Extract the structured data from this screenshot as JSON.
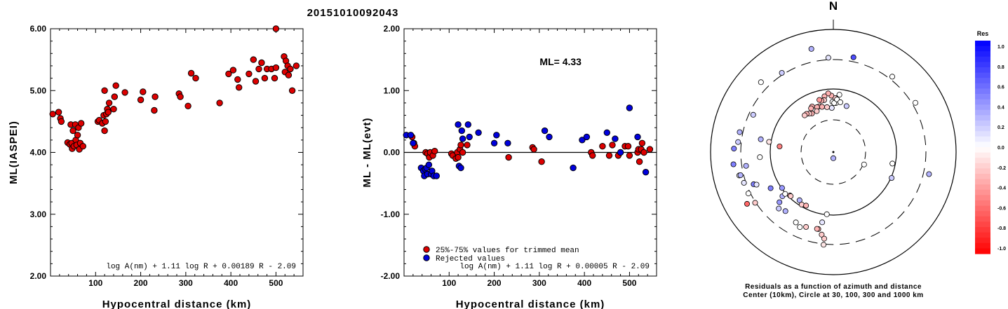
{
  "event_id": "20151010092043",
  "chart_data": [
    {
      "type": "scatter",
      "title": "20151010092043",
      "xlabel": "Hypocentral distance (km)",
      "ylabel": "ML(IASPEI)",
      "xlim": [
        0,
        560
      ],
      "ylim": [
        2.0,
        6.0
      ],
      "x_ticks": [
        "100",
        "200",
        "300",
        "400",
        "500"
      ],
      "y_ticks": [
        "2.00",
        "3.00",
        "4.00",
        "5.00",
        "6.00"
      ],
      "formula": "log A(nm) + 1.11 log R + 0.00189 R - 2.09",
      "series": [
        {
          "color": "#dd0000",
          "points": [
            [
              5,
              4.62
            ],
            [
              18,
              4.65
            ],
            [
              22,
              4.55
            ],
            [
              24,
              4.5
            ],
            [
              38,
              4.16
            ],
            [
              43,
              4.13
            ],
            [
              45,
              4.45
            ],
            [
              47,
              4.15
            ],
            [
              48,
              4.06
            ],
            [
              50,
              4.35
            ],
            [
              52,
              4.1
            ],
            [
              55,
              4.45
            ],
            [
              56,
              4.2
            ],
            [
              58,
              4.12
            ],
            [
              60,
              4.28
            ],
            [
              62,
              4.4
            ],
            [
              64,
              4.05
            ],
            [
              66,
              4.15
            ],
            [
              68,
              4.47
            ],
            [
              72,
              4.1
            ],
            [
              105,
              4.5
            ],
            [
              108,
              4.52
            ],
            [
              115,
              4.47
            ],
            [
              118,
              4.6
            ],
            [
              120,
              4.35
            ],
            [
              122,
              4.5
            ],
            [
              124,
              4.62
            ],
            [
              126,
              4.7
            ],
            [
              128,
              4.65
            ],
            [
              130,
              4.8
            ],
            [
              120,
              5.0
            ],
            [
              140,
              4.7
            ],
            [
              142,
              4.9
            ],
            [
              145,
              5.08
            ],
            [
              165,
              4.97
            ],
            [
              200,
              4.85
            ],
            [
              205,
              4.98
            ],
            [
              230,
              4.68
            ],
            [
              232,
              4.9
            ],
            [
              285,
              4.95
            ],
            [
              288,
              4.9
            ],
            [
              305,
              4.75
            ],
            [
              312,
              5.28
            ],
            [
              322,
              5.2
            ],
            [
              375,
              4.8
            ],
            [
              395,
              5.27
            ],
            [
              405,
              5.33
            ],
            [
              415,
              5.18
            ],
            [
              418,
              5.05
            ],
            [
              440,
              5.27
            ],
            [
              450,
              5.5
            ],
            [
              455,
              5.15
            ],
            [
              462,
              5.35
            ],
            [
              468,
              5.45
            ],
            [
              475,
              5.2
            ],
            [
              480,
              5.35
            ],
            [
              490,
              5.35
            ],
            [
              497,
              5.2
            ],
            [
              500,
              5.37
            ],
            [
              500,
              6.0
            ],
            [
              518,
              5.55
            ],
            [
              520,
              5.3
            ],
            [
              522,
              5.48
            ],
            [
              526,
              5.4
            ],
            [
              528,
              5.25
            ],
            [
              532,
              5.35
            ],
            [
              536,
              5.0
            ],
            [
              545,
              5.4
            ]
          ]
        }
      ]
    },
    {
      "type": "scatter",
      "xlabel": "Hypocentral distance (km)",
      "ylabel": "ML - ML(evt)",
      "xlim": [
        0,
        560
      ],
      "ylim": [
        -2.0,
        2.0
      ],
      "x_ticks": [
        "100",
        "200",
        "300",
        "400",
        "500"
      ],
      "y_ticks": [
        "-2.00",
        "-1.00",
        "0.00",
        "1.00",
        "2.00"
      ],
      "annotation": "ML= 4.33",
      "formula": "log A(nm) + 1.11 log R + 0.00005 R - 2.09",
      "legend_position": "bottom-left",
      "series": [
        {
          "name": "25%-75% values for trimmed mean",
          "color": "#dd0000",
          "points": [
            [
              18,
              0.25
            ],
            [
              22,
              0.15
            ],
            [
              24,
              0.1
            ],
            [
              48,
              0.0
            ],
            [
              52,
              -0.02
            ],
            [
              56,
              -0.08
            ],
            [
              58,
              0.0
            ],
            [
              64,
              -0.05
            ],
            [
              68,
              0.02
            ],
            [
              105,
              -0.02
            ],
            [
              108,
              -0.05
            ],
            [
              115,
              -0.1
            ],
            [
              118,
              0.0
            ],
            [
              120,
              -0.08
            ],
            [
              124,
              0.05
            ],
            [
              126,
              0.12
            ],
            [
              130,
              0.0
            ],
            [
              140,
              0.12
            ],
            [
              232,
              -0.08
            ],
            [
              285,
              0.08
            ],
            [
              288,
              0.05
            ],
            [
              305,
              -0.15
            ],
            [
              415,
              0.0
            ],
            [
              418,
              -0.05
            ],
            [
              440,
              0.1
            ],
            [
              455,
              -0.05
            ],
            [
              462,
              0.12
            ],
            [
              475,
              -0.05
            ],
            [
              490,
              0.1
            ],
            [
              497,
              0.1
            ],
            [
              500,
              -0.05
            ],
            [
              518,
              0.0
            ],
            [
              520,
              0.05
            ],
            [
              522,
              -0.15
            ],
            [
              526,
              0.05
            ],
            [
              528,
              0.15
            ],
            [
              532,
              0.0
            ],
            [
              545,
              0.05
            ]
          ]
        },
        {
          "name": "Rejected values",
          "color": "#0000dd",
          "points": [
            [
              5,
              0.28
            ],
            [
              15,
              0.28
            ],
            [
              20,
              0.15
            ],
            [
              38,
              -0.25
            ],
            [
              43,
              -0.3
            ],
            [
              45,
              -0.38
            ],
            [
              47,
              -0.27
            ],
            [
              50,
              -0.25
            ],
            [
              52,
              -0.35
            ],
            [
              55,
              -0.2
            ],
            [
              60,
              -0.35
            ],
            [
              62,
              -0.3
            ],
            [
              66,
              -0.38
            ],
            [
              72,
              -0.38
            ],
            [
              120,
              0.45
            ],
            [
              122,
              -0.22
            ],
            [
              126,
              -0.25
            ],
            [
              128,
              0.35
            ],
            [
              130,
              0.22
            ],
            [
              142,
              0.45
            ],
            [
              145,
              0.25
            ],
            [
              165,
              0.32
            ],
            [
              200,
              0.15
            ],
            [
              205,
              0.28
            ],
            [
              230,
              0.15
            ],
            [
              312,
              0.35
            ],
            [
              322,
              0.25
            ],
            [
              375,
              -0.25
            ],
            [
              395,
              0.2
            ],
            [
              405,
              0.25
            ],
            [
              450,
              0.32
            ],
            [
              468,
              0.22
            ],
            [
              480,
              0.0
            ],
            [
              500,
              0.72
            ],
            [
              518,
              0.25
            ],
            [
              536,
              -0.32
            ]
          ]
        }
      ]
    },
    {
      "type": "scatter",
      "subtype": "polar",
      "north_label": "N",
      "caption_line1": "Residuals as a function of azimuth and distance",
      "caption_line2": "Center (10km), Circle at 30, 100, 300 and 1000 km",
      "colorbar_title": "Res",
      "colorbar_ticks": [
        "1.0",
        "0.8",
        "0.6",
        "0.4",
        "0.2",
        "0.0",
        "-0.2",
        "-0.4",
        "-0.6",
        "-0.8",
        "-1.0"
      ],
      "colorbar_range": [
        -1.0,
        1.0
      ],
      "points_res_azimuth_radius": [
        [
          0.3,
          -12,
          0.86
        ],
        [
          0.1,
          -3,
          0.77
        ],
        [
          0.7,
          12,
          0.79
        ],
        [
          0.0,
          38,
          0.78
        ],
        [
          0.2,
          -33,
          0.77
        ],
        [
          0.0,
          -46,
          0.82
        ],
        [
          0.2,
          -65,
          0.72
        ],
        [
          0.3,
          -80,
          0.6
        ],
        [
          0.0,
          -104,
          0.79
        ],
        [
          -0.6,
          -121,
          0.82
        ],
        [
          -0.2,
          -123,
          0.76
        ],
        [
          0.0,
          -156,
          0.67
        ],
        [
          0.0,
          -152,
          0.65
        ],
        [
          -0.3,
          -169,
          0.64
        ],
        [
          -0.2,
          -172,
          0.68
        ],
        [
          -0.2,
          -174,
          0.71
        ],
        [
          0.0,
          -174,
          0.51
        ],
        [
          0.1,
          -171,
          0.58
        ],
        [
          0.3,
          -141,
          0.62
        ],
        [
          0.2,
          -136,
          0.64
        ],
        [
          0.4,
          -133,
          0.6
        ],
        [
          0.3,
          -131,
          0.55
        ],
        [
          0.0,
          -131,
          0.52
        ],
        [
          -0.3,
          -135,
          0.5
        ],
        [
          0.5,
          -97,
          0.82
        ],
        [
          0.5,
          -88,
          0.81
        ],
        [
          0.3,
          -104,
          0.78
        ],
        [
          0.3,
          -99,
          0.72
        ],
        [
          0.1,
          -109,
          0.77
        ],
        [
          0.0,
          -116,
          0.77
        ],
        [
          0.5,
          -112,
          0.7
        ],
        [
          0.1,
          -113,
          0.68
        ],
        [
          0.5,
          -120,
          0.59
        ],
        [
          0.4,
          -125,
          0.51
        ],
        [
          -0.2,
          -136,
          0.5
        ],
        [
          0.3,
          -145,
          0.48
        ],
        [
          -0.2,
          -149,
          0.5
        ],
        [
          -0.3,
          -153,
          0.49
        ],
        [
          -0.1,
          -174,
          0.76
        ],
        [
          -0.3,
          -168,
          0.64
        ],
        [
          -0.2,
          -160,
          0.65
        ],
        [
          0.2,
          -84,
          0.78
        ],
        [
          0.3,
          -78,
          0.78
        ],
        [
          0.0,
          -94,
          0.6
        ],
        [
          -0.1,
          -81,
          0.53
        ],
        [
          0.3,
          103,
          0.8
        ],
        [
          0.0,
          59,
          0.78
        ],
        [
          0.0,
          101,
          0.49
        ],
        [
          0.2,
          114,
          0.52
        ],
        [
          -0.5,
          -84,
          0.44
        ],
        [
          0.2,
          16,
          0.39
        ],
        [
          0.0,
          112,
          0.27
        ],
        [
          0.3,
          180,
          0.05
        ],
        [
          0.0,
          6,
          0.47
        ],
        [
          0.1,
          3,
          0.44
        ],
        [
          0.0,
          3,
          0.4
        ],
        [
          -0.2,
          2,
          0.44
        ],
        [
          0.0,
          -1,
          0.41
        ],
        [
          -0.3,
          -2,
          0.46
        ],
        [
          -0.3,
          -5,
          0.48
        ],
        [
          -0.3,
          -9,
          0.46
        ],
        [
          -0.2,
          -10,
          0.43
        ],
        [
          -0.3,
          -13,
          0.43
        ],
        [
          -0.4,
          -15,
          0.44
        ],
        [
          -0.3,
          -17,
          0.39
        ],
        [
          -0.3,
          -20,
          0.39
        ],
        [
          -0.3,
          -25,
          0.41
        ],
        [
          -0.3,
          -27,
          0.4
        ],
        [
          -0.3,
          -29,
          0.36
        ],
        [
          -0.2,
          -32,
          0.37
        ],
        [
          -0.3,
          -35,
          0.38
        ],
        [
          -0.2,
          -38,
          0.38
        ],
        [
          -0.3,
          -14,
          0.38
        ],
        [
          -0.2,
          -22,
          0.36
        ],
        [
          0.1,
          -2,
          0.36
        ],
        [
          0.0,
          1,
          0.4
        ],
        [
          -0.2,
          -8,
          0.37
        ],
        [
          0.0,
          4,
          0.43
        ],
        [
          0.0,
          8,
          0.41
        ]
      ]
    }
  ]
}
